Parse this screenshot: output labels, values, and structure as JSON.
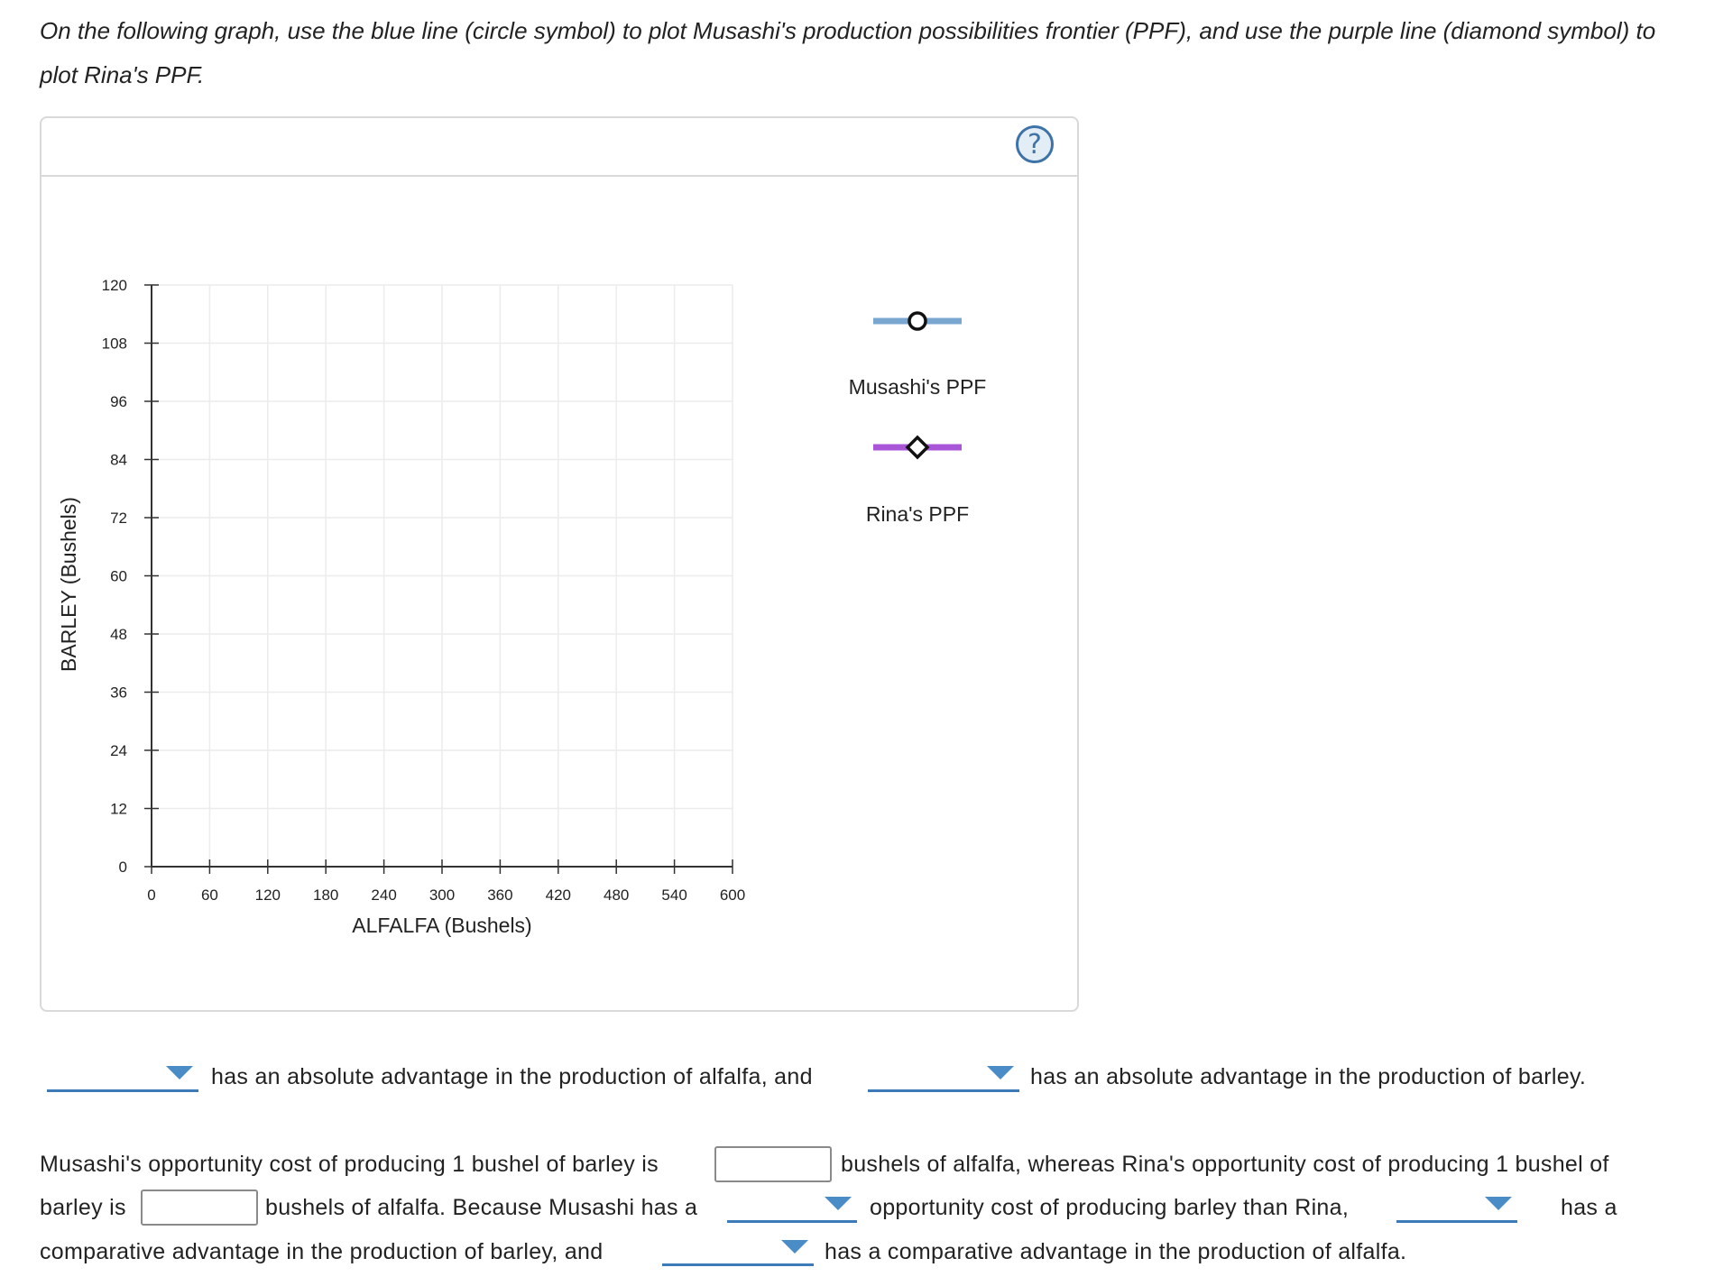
{
  "instructions": "On the following graph, use the blue line (circle symbol) to plot Musashi's production possibilities frontier (PPF), and use the purple line (diamond symbol) to plot Rina's PPF.",
  "help_icon": "?",
  "chart_data": {
    "type": "line",
    "xlabel": "ALFALFA (Bushels)",
    "ylabel": "BARLEY (Bushels)",
    "x_ticks": [
      0,
      60,
      120,
      180,
      240,
      300,
      360,
      420,
      480,
      540,
      600
    ],
    "y_ticks": [
      0,
      12,
      24,
      36,
      48,
      60,
      72,
      84,
      96,
      108,
      120
    ],
    "xlim": [
      0,
      600
    ],
    "ylim": [
      0,
      120
    ],
    "grid": true,
    "series": [
      {
        "name": "Musashi's PPF",
        "color": "#7aa7d0",
        "marker": "circle",
        "points": []
      },
      {
        "name": "Rina's PPF",
        "color": "#a855d8",
        "marker": "diamond",
        "points": []
      }
    ]
  },
  "legend": [
    {
      "label": "Musashi's PPF",
      "color": "#7aa7d0",
      "marker": "circle"
    },
    {
      "label": "Rina's PPF",
      "color": "#a855d8",
      "marker": "diamond"
    }
  ],
  "absolute_advantage": {
    "alfalfa_select_value": "",
    "text1": "has an absolute advantage in the production of alfalfa, and",
    "barley_select_value": "",
    "text2": "has an absolute advantage in the production of barley."
  },
  "opportunity_cost": {
    "line1_a": "Musashi's opportunity cost of producing 1 bushel of barley is",
    "musashi_input_value": "",
    "line1_b": "bushels of alfalfa, whereas Rina's opportunity cost of producing 1 bushel of",
    "line2_a": "barley is",
    "rina_input_value": "",
    "line2_b": "bushels of alfalfa. Because Musashi has a",
    "cost_select_value": "",
    "line2_c": "opportunity cost of producing barley than Rina,",
    "who_select_value": "",
    "line2_d": "has a",
    "line3_a": "comparative advantage in the production of barley, and",
    "alfalfa_comp_select_value": "",
    "line3_b": "has a comparative advantage in the production of alfalfa."
  },
  "colors": {
    "accent": "#3d7ab8",
    "dropdown_arrow": "#4a8cc6",
    "grid": "#ececec",
    "panel_border": "#d9d9d9"
  }
}
